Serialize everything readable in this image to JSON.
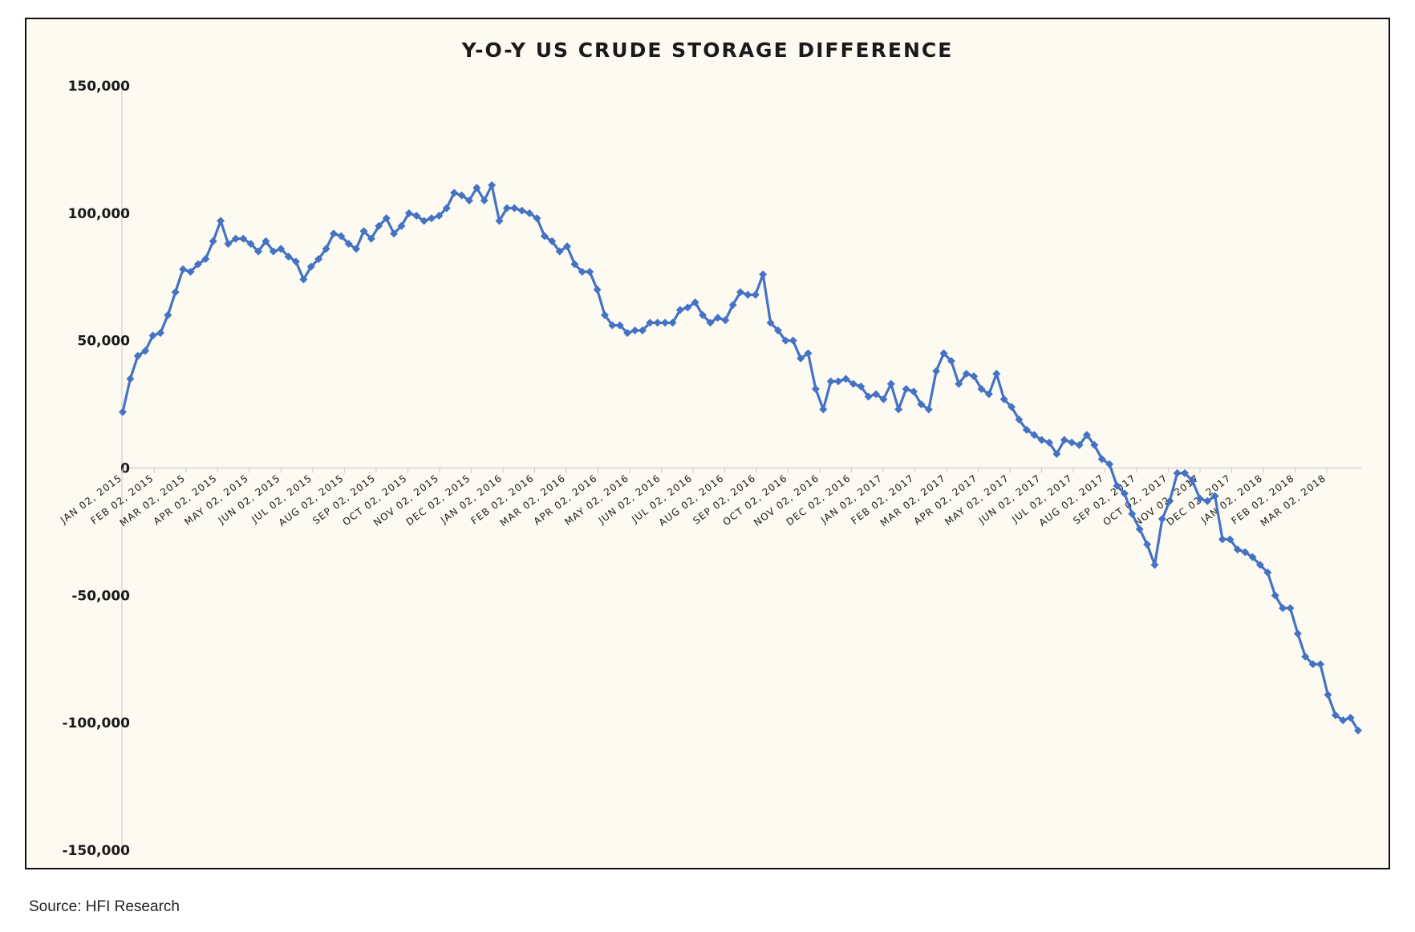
{
  "colors": {
    "series": "#4472c4",
    "background": "#fcfaf1",
    "frame": "#111111",
    "axis": "#cfcfcf"
  },
  "footer": {
    "source": "Source: HFI Research"
  },
  "chart_data": {
    "type": "line",
    "title": "Y-O-Y US CRUDE STORAGE DIFFERENCE",
    "xlabel": "",
    "ylabel": "",
    "ylim": [
      -150000,
      150000
    ],
    "yticks": [
      150000,
      100000,
      50000,
      0,
      -50000,
      -100000,
      -150000
    ],
    "ytick_labels": [
      "150,000",
      "100,000",
      "50,000",
      "0",
      "-50,000",
      "-100,000",
      "-150,000"
    ],
    "xtick_labels": [
      "JAN 02, 2015",
      "FEB 02, 2015",
      "MAR 02, 2015",
      "APR 02, 2015",
      "MAY 02, 2015",
      "JUN 02, 2015",
      "JUL 02, 2015",
      "AUG 02, 2015",
      "SEP 02, 2015",
      "OCT 02, 2015",
      "NOV 02, 2015",
      "DEC 02, 2015",
      "JAN 02, 2016",
      "FEB 02, 2016",
      "MAR 02, 2016",
      "APR 02, 2016",
      "MAY 02, 2016",
      "JUN 02, 2016",
      "JUL 02, 2016",
      "AUG 02, 2016",
      "SEP 02, 2016",
      "OCT 02, 2016",
      "NOV 02, 2016",
      "DEC 02, 2016",
      "JAN 02, 2017",
      "FEB 02, 2017",
      "MAR 02, 2017",
      "APR 02, 2017",
      "MAY 02, 2017",
      "JUN 02, 2017",
      "JUL 02, 2017",
      "AUG 02, 2017",
      "SEP 02, 2017",
      "OCT 02, 2017",
      "NOV 02, 2017",
      "DEC 02, 2017",
      "JAN 02, 2018",
      "FEB 02, 2018",
      "MAR 02, 2018"
    ],
    "grid": false,
    "legend": "none",
    "series": [
      {
        "frequency": "weekly",
        "values": [
          22000,
          35000,
          44000,
          46000,
          52000,
          53000,
          60000,
          69000,
          78000,
          77000,
          80000,
          82000,
          89000,
          97000,
          88000,
          90000,
          90000,
          88000,
          85000,
          89000,
          85000,
          86000,
          83000,
          81000,
          74000,
          79000,
          82000,
          86000,
          92000,
          91000,
          88000,
          86000,
          93000,
          90000,
          95000,
          98000,
          92000,
          95000,
          100000,
          99000,
          97000,
          98000,
          99000,
          102000,
          108000,
          107000,
          105000,
          110000,
          105000,
          111000,
          97000,
          102000,
          102000,
          101000,
          100000,
          98000,
          91000,
          89000,
          85000,
          87000,
          80000,
          77000,
          77000,
          70000,
          60000,
          56000,
          56000,
          53000,
          54000,
          54000,
          57000,
          57000,
          57000,
          57000,
          62000,
          63000,
          65000,
          60000,
          57000,
          59000,
          58000,
          64000,
          69000,
          68000,
          68000,
          76000,
          57000,
          54000,
          50000,
          50000,
          43000,
          45000,
          31000,
          23000,
          34000,
          34000,
          35000,
          33000,
          32000,
          28000,
          29000,
          27000,
          33000,
          23000,
          31000,
          30000,
          25000,
          23000,
          38000,
          45000,
          42000,
          33000,
          37000,
          36000,
          31000,
          29000,
          37000,
          27000,
          24000,
          19000,
          15000,
          13000,
          11000,
          10000,
          5500,
          11000,
          10000,
          9000,
          13000,
          9000,
          3500,
          1500,
          -7000,
          -10000,
          -18000,
          -24000,
          -30000,
          -38000,
          -20000,
          -13000,
          -2000,
          -2000,
          -5000,
          -12000,
          -13000,
          -11000,
          -28000,
          -28000,
          -32000,
          -33000,
          -35000,
          -38000,
          -41000,
          -50000,
          -55000,
          -55000,
          -65000,
          -74000,
          -77000,
          -77000,
          -89000,
          -97000,
          -99000,
          -98000,
          -103000
        ]
      }
    ]
  }
}
